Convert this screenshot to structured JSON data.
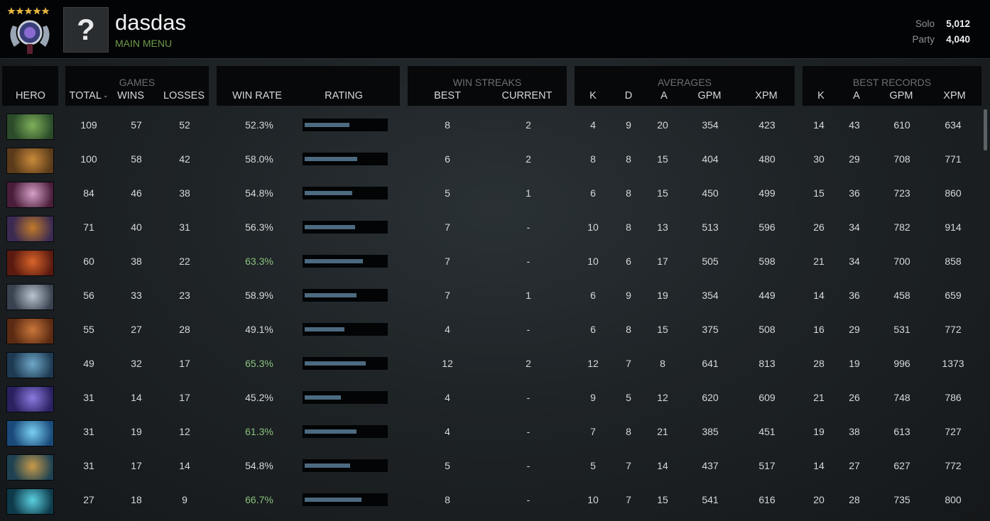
{
  "header": {
    "player_name": "dasdas",
    "main_menu_label": "MAIN MENU",
    "avatar_placeholder": "?",
    "mmr": [
      {
        "label": "Solo",
        "value": "5,012"
      },
      {
        "label": "Party",
        "value": "4,040"
      }
    ]
  },
  "groups": {
    "games": "GAMES",
    "win_streaks": "WIN STREAKS",
    "averages": "AVERAGES",
    "best_records": "BEST RECORDS"
  },
  "columns": {
    "hero": "HERO",
    "total": "TOTAL",
    "wins": "WINS",
    "losses": "LOSSES",
    "win_rate": "WIN RATE",
    "rating": "RATING",
    "best": "BEST",
    "current": "CURRENT",
    "avg_k": "K",
    "avg_d": "D",
    "avg_a": "A",
    "avg_gpm": "GPM",
    "avg_xpm": "XPM",
    "best_k": "K",
    "best_a": "A",
    "best_gpm": "GPM",
    "best_xpm": "XPM"
  },
  "colors": {
    "accent_green": "#8bc27e",
    "menu_green": "#6e9a4a",
    "rating_bar": "#4c6a80"
  },
  "rows": [
    {
      "portrait": [
        "#2b4b2a",
        "#7fb05a"
      ],
      "total": "109",
      "wins": "57",
      "losses": "52",
      "win_rate": "52.3%",
      "good": false,
      "rating": 0.55,
      "best": "8",
      "current": "2",
      "k": "4",
      "d": "9",
      "a": "20",
      "gpm": "354",
      "xpm": "423",
      "bk": "14",
      "ba": "43",
      "bgpm": "610",
      "bxpm": "634"
    },
    {
      "portrait": [
        "#5a3a1a",
        "#c98a3a"
      ],
      "total": "100",
      "wins": "58",
      "losses": "42",
      "win_rate": "58.0%",
      "good": false,
      "rating": 0.65,
      "best": "6",
      "current": "2",
      "k": "8",
      "d": "8",
      "a": "15",
      "gpm": "404",
      "xpm": "480",
      "bk": "30",
      "ba": "29",
      "bgpm": "708",
      "bxpm": "771"
    },
    {
      "portrait": [
        "#4a1e3a",
        "#d6a0c8"
      ],
      "total": "84",
      "wins": "46",
      "losses": "38",
      "win_rate": "54.8%",
      "good": false,
      "rating": 0.59,
      "best": "5",
      "current": "1",
      "k": "6",
      "d": "8",
      "a": "15",
      "gpm": "450",
      "xpm": "499",
      "bk": "15",
      "ba": "36",
      "bgpm": "723",
      "bxpm": "860"
    },
    {
      "portrait": [
        "#3b2a52",
        "#c07a2a"
      ],
      "total": "71",
      "wins": "40",
      "losses": "31",
      "win_rate": "56.3%",
      "good": false,
      "rating": 0.62,
      "best": "7",
      "current": "-",
      "k": "10",
      "d": "8",
      "a": "13",
      "gpm": "513",
      "xpm": "596",
      "bk": "26",
      "ba": "34",
      "bgpm": "782",
      "bxpm": "914"
    },
    {
      "portrait": [
        "#5a1a10",
        "#d9642a"
      ],
      "total": "60",
      "wins": "38",
      "losses": "22",
      "win_rate": "63.3%",
      "good": true,
      "rating": 0.72,
      "best": "7",
      "current": "-",
      "k": "10",
      "d": "6",
      "a": "17",
      "gpm": "505",
      "xpm": "598",
      "bk": "21",
      "ba": "34",
      "bgpm": "700",
      "bxpm": "858"
    },
    {
      "portrait": [
        "#3a4250",
        "#b9c4cf"
      ],
      "total": "56",
      "wins": "33",
      "losses": "23",
      "win_rate": "58.9%",
      "good": false,
      "rating": 0.64,
      "best": "7",
      "current": "1",
      "k": "6",
      "d": "9",
      "a": "19",
      "gpm": "354",
      "xpm": "449",
      "bk": "14",
      "ba": "36",
      "bgpm": "458",
      "bxpm": "659"
    },
    {
      "portrait": [
        "#5a2a12",
        "#c9763a"
      ],
      "total": "55",
      "wins": "27",
      "losses": "28",
      "win_rate": "49.1%",
      "good": false,
      "rating": 0.49,
      "best": "4",
      "current": "-",
      "k": "6",
      "d": "8",
      "a": "15",
      "gpm": "375",
      "xpm": "508",
      "bk": "16",
      "ba": "29",
      "bgpm": "531",
      "bxpm": "772"
    },
    {
      "portrait": [
        "#1e3a52",
        "#6fa8c8"
      ],
      "total": "49",
      "wins": "32",
      "losses": "17",
      "win_rate": "65.3%",
      "good": true,
      "rating": 0.75,
      "best": "12",
      "current": "2",
      "k": "12",
      "d": "7",
      "a": "8",
      "gpm": "641",
      "xpm": "813",
      "bk": "28",
      "ba": "19",
      "bgpm": "996",
      "bxpm": "1373"
    },
    {
      "portrait": [
        "#2a2060",
        "#8a7ae0"
      ],
      "total": "31",
      "wins": "14",
      "losses": "17",
      "win_rate": "45.2%",
      "good": false,
      "rating": 0.45,
      "best": "4",
      "current": "-",
      "k": "9",
      "d": "5",
      "a": "12",
      "gpm": "620",
      "xpm": "609",
      "bk": "21",
      "ba": "26",
      "bgpm": "748",
      "bxpm": "786"
    },
    {
      "portrait": [
        "#1a4a7a",
        "#7ad0f0"
      ],
      "total": "31",
      "wins": "19",
      "losses": "12",
      "win_rate": "61.3%",
      "good": true,
      "rating": 0.64,
      "best": "4",
      "current": "-",
      "k": "7",
      "d": "8",
      "a": "21",
      "gpm": "385",
      "xpm": "451",
      "bk": "19",
      "ba": "38",
      "bgpm": "613",
      "bxpm": "727"
    },
    {
      "portrait": [
        "#1e4252",
        "#c89a4a"
      ],
      "total": "31",
      "wins": "17",
      "losses": "14",
      "win_rate": "54.8%",
      "good": false,
      "rating": 0.56,
      "best": "5",
      "current": "-",
      "k": "5",
      "d": "7",
      "a": "14",
      "gpm": "437",
      "xpm": "517",
      "bk": "14",
      "ba": "27",
      "bgpm": "627",
      "bxpm": "772"
    },
    {
      "portrait": [
        "#0e3a4a",
        "#5ad0e0"
      ],
      "total": "27",
      "wins": "18",
      "losses": "9",
      "win_rate": "66.7%",
      "good": true,
      "rating": 0.7,
      "best": "8",
      "current": "-",
      "k": "10",
      "d": "7",
      "a": "15",
      "gpm": "541",
      "xpm": "616",
      "bk": "20",
      "ba": "28",
      "bgpm": "735",
      "bxpm": "800"
    }
  ]
}
